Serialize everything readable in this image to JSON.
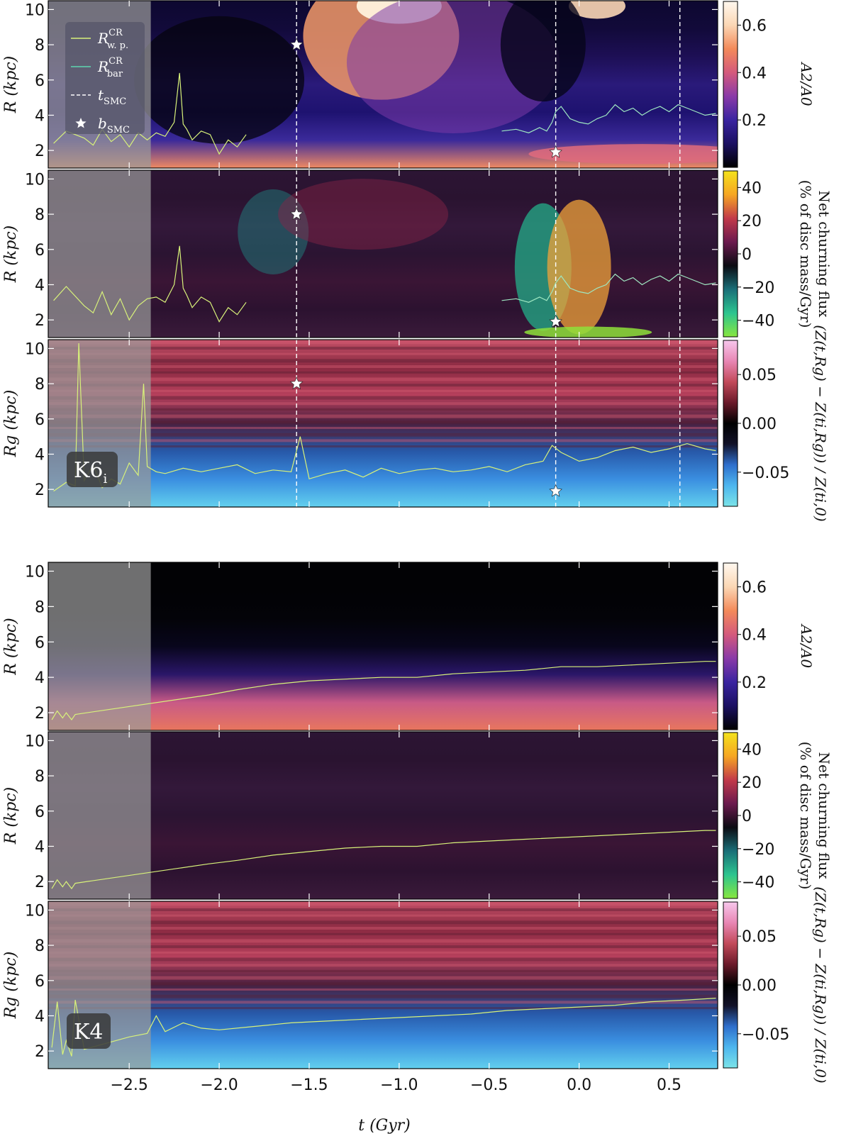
{
  "figure": {
    "x_axis_label": "t (Gyr)",
    "x_ticks": [
      "−2.5",
      "−2.0",
      "−1.5",
      "−1.0",
      "−0.5",
      "0.0",
      "0.5"
    ]
  },
  "legend": {
    "items": [
      {
        "label": "R",
        "sup": "CR",
        "sub": "w. p.",
        "style": "line",
        "color": "#d8f27a"
      },
      {
        "label": "R",
        "sup": "CR",
        "sub": "bar",
        "style": "line",
        "color": "#5fd6b0"
      },
      {
        "label": "t",
        "sub": "SMC",
        "style": "dashed",
        "color": "#ffffff"
      },
      {
        "label": "b",
        "sub": "SMC",
        "style": "star",
        "color": "#ffffff"
      }
    ]
  },
  "colors": {
    "grey_shade": "#9a9a9a",
    "a2_cmap": [
      "#000000",
      "#1b1062",
      "#3a24a0",
      "#8a3aa8",
      "#d45a7c",
      "#f38a5a",
      "#fbd7b5",
      "#fff8ef"
    ],
    "churn_cmap": [
      "#88e63f",
      "#2dc58f",
      "#1a6f78",
      "#0b0b12",
      "#6b1a4e",
      "#c23a4a",
      "#f6a623",
      "#f4e21c"
    ],
    "metal_cmap": [
      "#7be3e8",
      "#4db6ee",
      "#2f6fcc",
      "#121228",
      "#000000",
      "#6b1a2a",
      "#c24a5a",
      "#e887b4",
      "#f7c7ec"
    ]
  },
  "chart_data": [
    {
      "type": "heatmap",
      "group": "K6i",
      "ylabel": "R (kpc)",
      "colorbar_label": "A2/A0",
      "colorbar_ticks": [
        "0.2",
        "0.4",
        "0.6"
      ],
      "colorbar_range": [
        0.0,
        0.7
      ],
      "xlim": [
        -2.95,
        0.77
      ],
      "ylim": [
        1.0,
        10.5
      ],
      "yticks": [
        "2",
        "4",
        "6",
        "8",
        "10"
      ],
      "t_smc": [
        -1.57,
        -0.13,
        0.56
      ],
      "b_smc": [
        {
          "t": -1.57,
          "R": 8.0
        },
        {
          "t": -0.13,
          "R": 1.9
        }
      ],
      "series": [
        {
          "name": "R_CR_wp",
          "x": [
            -2.92,
            -2.85,
            -2.75,
            -2.7,
            -2.65,
            -2.6,
            -2.55,
            -2.5,
            -2.45,
            -2.4,
            -2.35,
            -2.3,
            -2.25,
            -2.22,
            -2.2,
            -2.18,
            -2.15,
            -2.1,
            -2.05,
            -2.0,
            -1.95,
            -1.9,
            -1.85
          ],
          "y": [
            2.4,
            3.1,
            2.7,
            2.3,
            3.2,
            2.5,
            2.9,
            2.2,
            3.0,
            2.6,
            3.0,
            2.8,
            3.6,
            6.4,
            3.5,
            3.2,
            2.6,
            3.1,
            2.9,
            1.8,
            2.6,
            2.2,
            2.9
          ]
        },
        {
          "name": "R_CR_bar",
          "x": [
            -0.43,
            -0.35,
            -0.28,
            -0.22,
            -0.18,
            -0.15,
            -0.13,
            -0.1,
            -0.05,
            0.0,
            0.05,
            0.1,
            0.15,
            0.2,
            0.25,
            0.3,
            0.35,
            0.4,
            0.45,
            0.5,
            0.55,
            0.6,
            0.65,
            0.7,
            0.76
          ],
          "y": [
            3.1,
            3.2,
            3.0,
            3.3,
            3.1,
            3.6,
            4.2,
            4.5,
            3.8,
            3.6,
            3.5,
            3.8,
            4.0,
            4.6,
            4.2,
            4.4,
            4.0,
            4.3,
            4.5,
            4.2,
            4.6,
            4.4,
            4.2,
            4.0,
            4.1
          ]
        }
      ]
    },
    {
      "type": "heatmap",
      "group": "K6i",
      "ylabel": "R (kpc)",
      "colorbar_label": "Net churning flux (% of disc mass/Gyr)",
      "colorbar_ticks": [
        "−40",
        "−20",
        "0",
        "20",
        "40"
      ],
      "colorbar_range": [
        -50,
        50
      ],
      "xlim": [
        -2.95,
        0.77
      ],
      "ylim": [
        1.0,
        10.5
      ],
      "yticks": [
        "2",
        "4",
        "6",
        "8",
        "10"
      ],
      "t_smc": [
        -1.57,
        -0.13,
        0.56
      ],
      "b_smc": [
        {
          "t": -1.57,
          "R": 8.0
        },
        {
          "t": -0.13,
          "R": 1.9
        }
      ],
      "series": [
        {
          "name": "R_CR_wp",
          "x": [
            -2.92,
            -2.85,
            -2.75,
            -2.7,
            -2.65,
            -2.6,
            -2.55,
            -2.5,
            -2.45,
            -2.4,
            -2.35,
            -2.3,
            -2.25,
            -2.22,
            -2.2,
            -2.18,
            -2.15,
            -2.1,
            -2.05,
            -2.0,
            -1.95,
            -1.9,
            -1.85
          ],
          "y": [
            3.1,
            3.9,
            2.8,
            2.4,
            3.6,
            2.3,
            3.2,
            2.0,
            2.8,
            3.2,
            3.3,
            3.0,
            4.0,
            6.2,
            3.8,
            3.4,
            2.7,
            3.3,
            3.0,
            1.9,
            2.7,
            2.3,
            3.0
          ]
        },
        {
          "name": "R_CR_bar",
          "x": [
            -0.43,
            -0.35,
            -0.28,
            -0.22,
            -0.18,
            -0.15,
            -0.13,
            -0.1,
            -0.05,
            0.0,
            0.05,
            0.1,
            0.15,
            0.2,
            0.25,
            0.3,
            0.35,
            0.4,
            0.45,
            0.5,
            0.55,
            0.6,
            0.65,
            0.7,
            0.76
          ],
          "y": [
            3.1,
            3.2,
            3.0,
            3.3,
            3.1,
            3.6,
            4.1,
            4.5,
            3.8,
            3.6,
            3.5,
            3.8,
            4.0,
            4.6,
            4.2,
            4.4,
            4.0,
            4.3,
            4.5,
            4.2,
            4.6,
            4.4,
            4.2,
            4.0,
            4.1
          ]
        }
      ]
    },
    {
      "type": "heatmap",
      "group": "K6i",
      "ylabel": "Rg (kpc)",
      "colorbar_label": "(Z(t,Rg) − Z(ti,Rg)) / Z(ti,0)",
      "colorbar_ticks": [
        "−0.05",
        "0.00",
        "0.05"
      ],
      "colorbar_range": [
        -0.085,
        0.085
      ],
      "xlim": [
        -2.95,
        0.77
      ],
      "ylim": [
        1.0,
        10.5
      ],
      "yticks": [
        "2",
        "4",
        "6",
        "8",
        "10"
      ],
      "t_smc": [
        -1.57,
        -0.13,
        0.56
      ],
      "b_smc": [
        {
          "t": -1.57,
          "R": 8.0
        },
        {
          "t": -0.13,
          "R": 1.9
        }
      ],
      "series": [
        {
          "name": "R_CR",
          "x": [
            -2.92,
            -2.85,
            -2.8,
            -2.78,
            -2.75,
            -2.7,
            -2.65,
            -2.6,
            -2.55,
            -2.5,
            -2.45,
            -2.42,
            -2.4,
            -2.35,
            -2.3,
            -2.2,
            -2.1,
            -2.0,
            -1.9,
            -1.8,
            -1.7,
            -1.6,
            -1.55,
            -1.5,
            -1.4,
            -1.3,
            -1.2,
            -1.1,
            -1.0,
            -0.9,
            -0.8,
            -0.7,
            -0.6,
            -0.5,
            -0.4,
            -0.3,
            -0.2,
            -0.15,
            -0.1,
            0.0,
            0.1,
            0.2,
            0.3,
            0.4,
            0.5,
            0.6,
            0.7,
            0.76
          ],
          "y": [
            1.9,
            2.4,
            2.2,
            10.3,
            2.5,
            3.4,
            2.1,
            2.6,
            2.3,
            3.5,
            2.8,
            8.0,
            3.3,
            3.0,
            2.9,
            3.2,
            3.0,
            3.2,
            3.4,
            2.9,
            3.1,
            3.0,
            5.0,
            2.6,
            2.9,
            3.1,
            2.7,
            3.2,
            2.9,
            3.1,
            3.2,
            3.0,
            3.1,
            3.3,
            3.0,
            3.4,
            3.6,
            4.5,
            4.1,
            3.6,
            3.8,
            4.2,
            4.4,
            4.1,
            4.3,
            4.6,
            4.3,
            4.2
          ]
        }
      ],
      "badge": "K6",
      "badge_sub": "i"
    },
    {
      "type": "heatmap",
      "group": "K4",
      "ylabel": "R (kpc)",
      "colorbar_label": "A2/A0",
      "colorbar_ticks": [
        "0.2",
        "0.4",
        "0.6"
      ],
      "colorbar_range": [
        0.0,
        0.7
      ],
      "xlim": [
        -2.95,
        0.77
      ],
      "ylim": [
        1.0,
        10.5
      ],
      "yticks": [
        "2",
        "4",
        "6",
        "8",
        "10"
      ],
      "series": [
        {
          "name": "R_CR",
          "x": [
            -2.93,
            -2.9,
            -2.87,
            -2.85,
            -2.82,
            -2.8,
            -2.06,
            -1.9,
            -1.7,
            -1.5,
            -1.3,
            -1.1,
            -0.9,
            -0.7,
            -0.5,
            -0.3,
            -0.1,
            0.1,
            0.3,
            0.5,
            0.7,
            0.76
          ],
          "y": [
            1.6,
            2.1,
            1.7,
            2.0,
            1.6,
            1.9,
            3.0,
            3.3,
            3.6,
            3.8,
            3.9,
            4.0,
            4.0,
            4.2,
            4.3,
            4.4,
            4.6,
            4.6,
            4.7,
            4.8,
            4.9,
            4.9
          ]
        }
      ]
    },
    {
      "type": "heatmap",
      "group": "K4",
      "ylabel": "R (kpc)",
      "colorbar_label": "Net churning flux (% of disc mass/Gyr)",
      "colorbar_ticks": [
        "−40",
        "−20",
        "0",
        "20",
        "40"
      ],
      "colorbar_range": [
        -50,
        50
      ],
      "xlim": [
        -2.95,
        0.77
      ],
      "ylim": [
        1.0,
        10.5
      ],
      "yticks": [
        "2",
        "4",
        "6",
        "8",
        "10"
      ],
      "series": [
        {
          "name": "R_CR",
          "x": [
            -2.93,
            -2.9,
            -2.87,
            -2.85,
            -2.82,
            -2.8,
            -2.06,
            -1.9,
            -1.7,
            -1.5,
            -1.3,
            -1.1,
            -0.9,
            -0.7,
            -0.5,
            -0.3,
            -0.1,
            0.1,
            0.3,
            0.5,
            0.7,
            0.76
          ],
          "y": [
            1.6,
            2.1,
            1.7,
            2.0,
            1.6,
            1.9,
            3.0,
            3.2,
            3.5,
            3.7,
            3.9,
            4.0,
            4.0,
            4.2,
            4.3,
            4.4,
            4.5,
            4.6,
            4.7,
            4.8,
            4.9,
            4.9
          ]
        }
      ]
    },
    {
      "type": "heatmap",
      "group": "K4",
      "ylabel": "Rg (kpc)",
      "colorbar_label": "(Z(t,Rg) − Z(ti,Rg)) / Z(ti,0)",
      "colorbar_ticks": [
        "−0.05",
        "0.00",
        "0.05"
      ],
      "colorbar_range": [
        -0.085,
        0.085
      ],
      "xlim": [
        -2.95,
        0.77
      ],
      "ylim": [
        1.0,
        10.5
      ],
      "yticks": [
        "2",
        "4",
        "6",
        "8",
        "10"
      ],
      "series": [
        {
          "name": "R_CR",
          "x": [
            -2.93,
            -2.9,
            -2.87,
            -2.85,
            -2.82,
            -2.8,
            -2.75,
            -2.5,
            -2.4,
            -2.35,
            -2.3,
            -2.2,
            -2.1,
            -2.0,
            -1.8,
            -1.6,
            -1.4,
            -1.2,
            -1.0,
            -0.8,
            -0.6,
            -0.4,
            -0.2,
            0.0,
            0.2,
            0.4,
            0.6,
            0.76
          ],
          "y": [
            2.2,
            4.8,
            1.8,
            2.6,
            1.7,
            4.9,
            2.1,
            2.8,
            3.0,
            4.0,
            3.1,
            3.6,
            3.3,
            3.2,
            3.4,
            3.6,
            3.7,
            3.8,
            3.9,
            4.0,
            4.1,
            4.3,
            4.4,
            4.5,
            4.6,
            4.8,
            4.9,
            5.0
          ]
        }
      ],
      "badge": "K4",
      "badge_sub": ""
    }
  ]
}
